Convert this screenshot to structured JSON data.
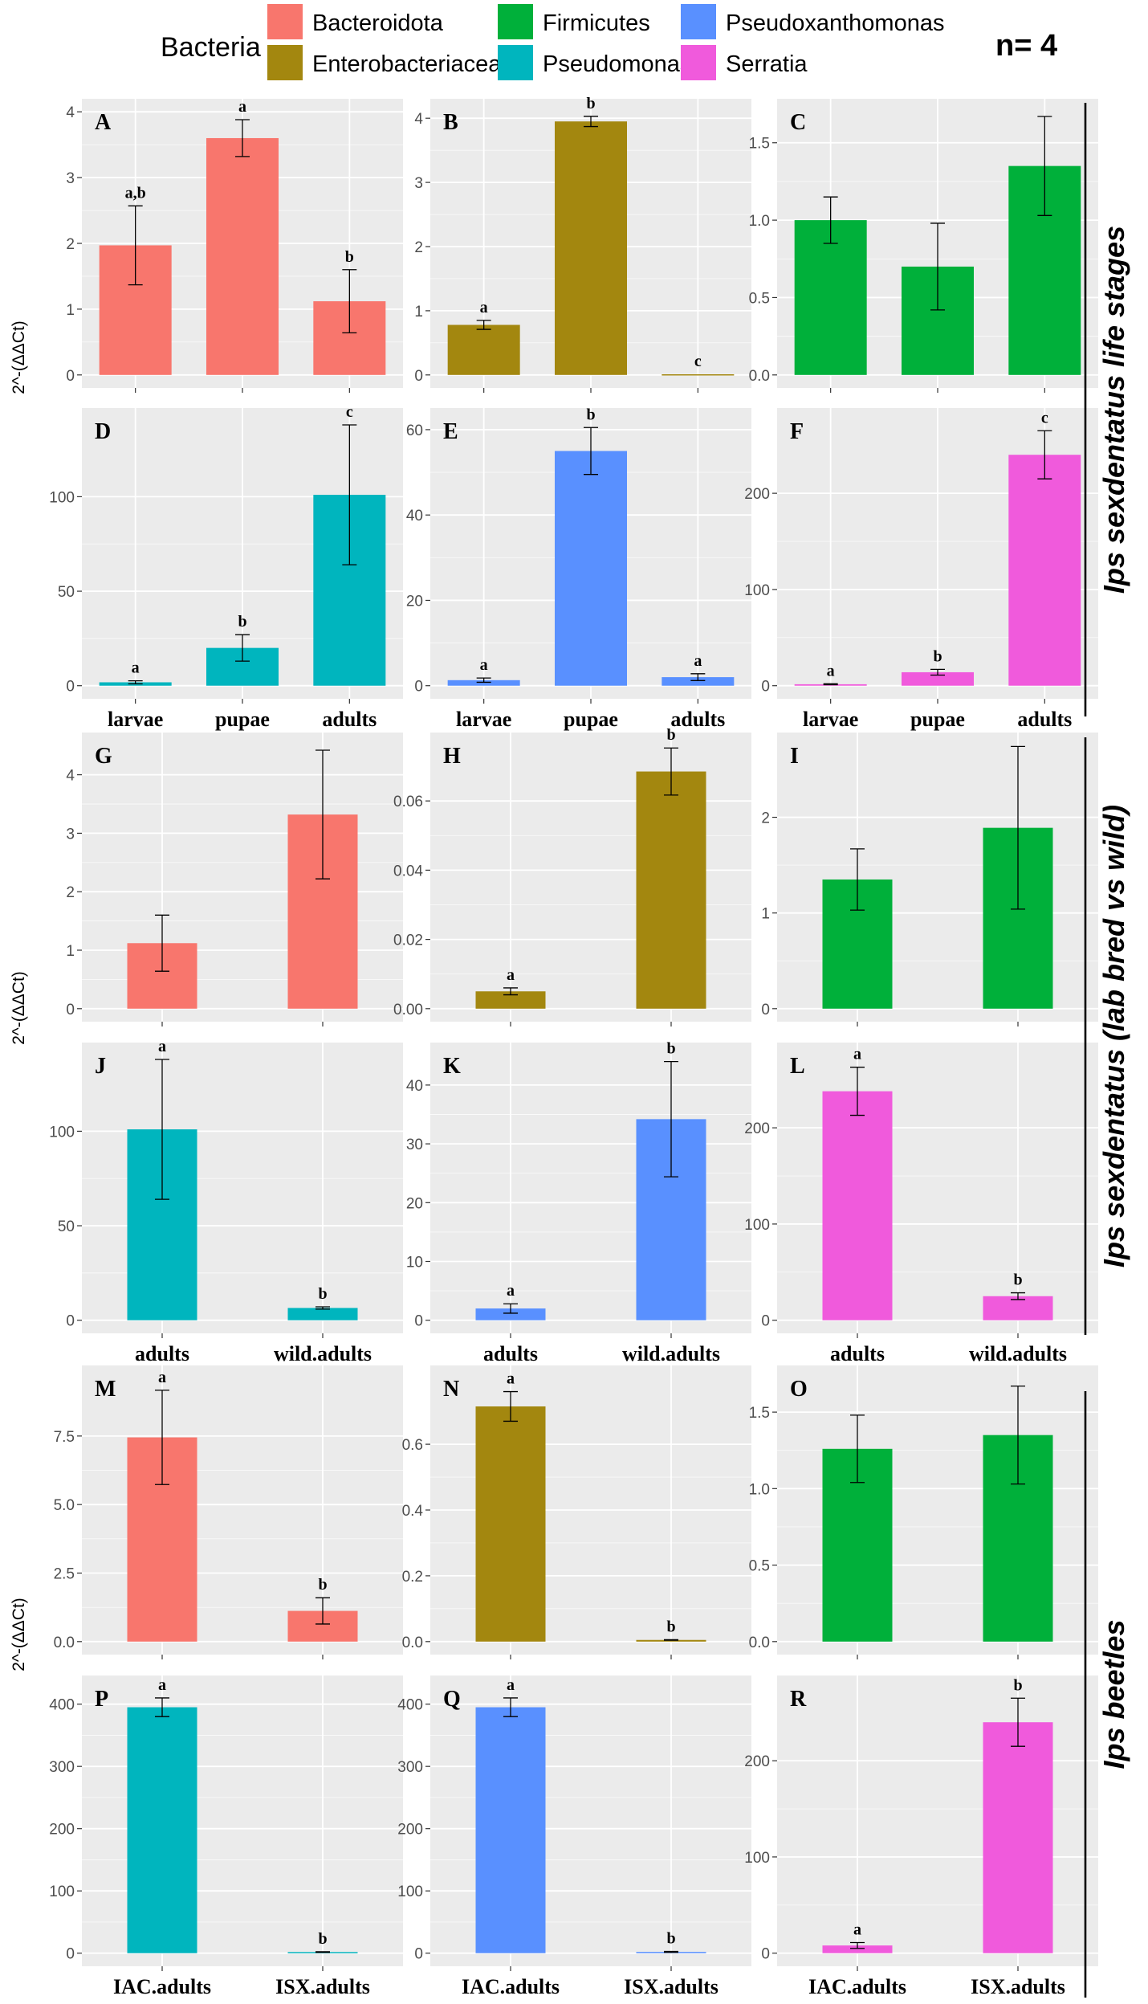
{
  "legend": {
    "title": "Bacteria",
    "items": [
      {
        "label": "Bacteroidota",
        "color": "#F8766D"
      },
      {
        "label": "Enterobacteriaceae",
        "color": "#A3870F"
      },
      {
        "label": "Firmicutes",
        "color": "#00B03A"
      },
      {
        "label": "Pseudomonas",
        "color": "#00B5BE"
      },
      {
        "label": "Pseudoxanthomonas",
        "color": "#5990FF"
      },
      {
        "label": "Serratia",
        "color": "#F05ADC"
      }
    ]
  },
  "n_label": "n= 4",
  "y_axis_label": "2^-(ΔΔCt)",
  "section_labels": [
    {
      "text": "Ips sexdentatus life stages"
    },
    {
      "text": "Ips sexdentatus (lab bred vs wild)"
    },
    {
      "text": "Ips beetles"
    }
  ],
  "chart_data": [
    {
      "panel": "A",
      "type": "bar",
      "group": "Bacteroidota",
      "color": "#F8766D",
      "categories": [
        "larvae",
        "pupae",
        "adults"
      ],
      "values": [
        1.97,
        3.6,
        1.12
      ],
      "err": [
        0.6,
        0.28,
        0.48
      ],
      "sig": [
        "a,b",
        "a",
        "b"
      ],
      "ylim": [
        0,
        4
      ],
      "ticks": [
        {
          "v": 0,
          "t": "0"
        },
        {
          "v": 1,
          "t": "1"
        },
        {
          "v": 2,
          "t": "2"
        },
        {
          "v": 3,
          "t": "3"
        },
        {
          "v": 4,
          "t": "4"
        }
      ],
      "xlabel_show": false
    },
    {
      "panel": "B",
      "type": "bar",
      "group": "Enterobacteriaceae",
      "color": "#A3870F",
      "categories": [
        "larvae",
        "pupae",
        "adults"
      ],
      "values": [
        0.78,
        3.95,
        0.01
      ],
      "err": [
        0.07,
        0.08,
        0
      ],
      "sig": [
        "a",
        "b",
        "c"
      ],
      "ylim": [
        0,
        4.1
      ],
      "ticks": [
        {
          "v": 0,
          "t": "0"
        },
        {
          "v": 1,
          "t": "1"
        },
        {
          "v": 2,
          "t": "2"
        },
        {
          "v": 3,
          "t": "3"
        },
        {
          "v": 4,
          "t": "4"
        }
      ],
      "xlabel_show": false
    },
    {
      "panel": "C",
      "type": "bar",
      "group": "Firmicutes",
      "color": "#00B03A",
      "categories": [
        "larvae",
        "pupae",
        "adults"
      ],
      "values": [
        1.0,
        0.7,
        1.35
      ],
      "err": [
        0.15,
        0.28,
        0.32
      ],
      "sig": [
        "",
        "",
        ""
      ],
      "ylim": [
        0,
        1.7
      ],
      "ticks": [
        {
          "v": 0,
          "t": "0.0"
        },
        {
          "v": 0.5,
          "t": "0.5"
        },
        {
          "v": 1,
          "t": "1.0"
        },
        {
          "v": 1.5,
          "t": "1.5"
        }
      ],
      "xlabel_show": false
    },
    {
      "panel": "D",
      "type": "bar",
      "group": "Pseudomonas",
      "color": "#00B5BE",
      "categories": [
        "larvae",
        "pupae",
        "adults"
      ],
      "values": [
        1.8,
        20,
        101
      ],
      "err": [
        0.8,
        7,
        37
      ],
      "sig": [
        "a",
        "b",
        "c"
      ],
      "ylim": [
        0,
        140
      ],
      "ticks": [
        {
          "v": 0,
          "t": "0"
        },
        {
          "v": 50,
          "t": "50"
        },
        {
          "v": 100,
          "t": "100"
        }
      ],
      "xlabel_show": true
    },
    {
      "panel": "E",
      "type": "bar",
      "group": "Pseudoxanthomonas",
      "color": "#5990FF",
      "categories": [
        "larvae",
        "pupae",
        "adults"
      ],
      "values": [
        1.3,
        55,
        2.0
      ],
      "err": [
        0.5,
        5.5,
        0.8
      ],
      "sig": [
        "a",
        "b",
        "a"
      ],
      "ylim": [
        0,
        62
      ],
      "ticks": [
        {
          "v": 0,
          "t": "0"
        },
        {
          "v": 20,
          "t": "20"
        },
        {
          "v": 40,
          "t": "40"
        },
        {
          "v": 60,
          "t": "60"
        }
      ],
      "xlabel_show": true
    },
    {
      "panel": "F",
      "type": "bar",
      "group": "Serratia",
      "color": "#F05ADC",
      "categories": [
        "larvae",
        "pupae",
        "adults"
      ],
      "values": [
        1.5,
        14,
        240
      ],
      "err": [
        0.5,
        3,
        25
      ],
      "sig": [
        "a",
        "b",
        "c"
      ],
      "ylim": [
        0,
        275
      ],
      "ticks": [
        {
          "v": 0,
          "t": "0"
        },
        {
          "v": 100,
          "t": "100"
        },
        {
          "v": 200,
          "t": "200"
        }
      ],
      "xlabel_show": true
    },
    {
      "panel": "G",
      "type": "bar",
      "group": "Bacteroidota",
      "color": "#F8766D",
      "categories": [
        "adults",
        "wild.adults"
      ],
      "values": [
        1.12,
        3.32
      ],
      "err": [
        0.48,
        1.1
      ],
      "sig": [
        "",
        ""
      ],
      "ylim": [
        0,
        4.5
      ],
      "ticks": [
        {
          "v": 0,
          "t": "0"
        },
        {
          "v": 1,
          "t": "1"
        },
        {
          "v": 2,
          "t": "2"
        },
        {
          "v": 3,
          "t": "3"
        },
        {
          "v": 4,
          "t": "4"
        }
      ],
      "xlabel_show": false
    },
    {
      "panel": "H",
      "type": "bar",
      "group": "Enterobacteriaceae",
      "color": "#A3870F",
      "categories": [
        "adults",
        "wild.adults"
      ],
      "values": [
        0.005,
        0.0685
      ],
      "err": [
        0.001,
        0.0068
      ],
      "sig": [
        "a",
        "b"
      ],
      "ylim": [
        0,
        0.076
      ],
      "ticks": [
        {
          "v": 0,
          "t": "0.00"
        },
        {
          "v": 0.02,
          "t": "0.02"
        },
        {
          "v": 0.04,
          "t": "0.04"
        },
        {
          "v": 0.06,
          "t": "0.06"
        }
      ],
      "xlabel_show": false
    },
    {
      "panel": "I",
      "type": "bar",
      "group": "Firmicutes",
      "color": "#00B03A",
      "categories": [
        "adults",
        "wild.adults"
      ],
      "values": [
        1.35,
        1.89
      ],
      "err": [
        0.32,
        0.85
      ],
      "sig": [
        "",
        ""
      ],
      "ylim": [
        0,
        2.75
      ],
      "ticks": [
        {
          "v": 0,
          "t": "0"
        },
        {
          "v": 1,
          "t": "1"
        },
        {
          "v": 2,
          "t": "2"
        }
      ],
      "xlabel_show": false
    },
    {
      "panel": "J",
      "type": "bar",
      "group": "Pseudomonas",
      "color": "#00B5BE",
      "categories": [
        "adults",
        "wild.adults"
      ],
      "values": [
        101,
        6.5
      ],
      "err": [
        37,
        0.6
      ],
      "sig": [
        "a",
        "b"
      ],
      "ylim": [
        0,
        140
      ],
      "ticks": [
        {
          "v": 0,
          "t": "0"
        },
        {
          "v": 50,
          "t": "50"
        },
        {
          "v": 100,
          "t": "100"
        }
      ],
      "xlabel_show": true
    },
    {
      "panel": "K",
      "type": "bar",
      "group": "Pseudoxanthomonas",
      "color": "#5990FF",
      "categories": [
        "adults",
        "wild.adults"
      ],
      "values": [
        2.0,
        34.2
      ],
      "err": [
        0.8,
        9.8
      ],
      "sig": [
        "a",
        "b"
      ],
      "ylim": [
        0,
        45
      ],
      "ticks": [
        {
          "v": 0,
          "t": "0"
        },
        {
          "v": 10,
          "t": "10"
        },
        {
          "v": 20,
          "t": "20"
        },
        {
          "v": 30,
          "t": "30"
        },
        {
          "v": 40,
          "t": "40"
        }
      ],
      "xlabel_show": true
    },
    {
      "panel": "L",
      "type": "bar",
      "group": "Serratia",
      "color": "#F05ADC",
      "categories": [
        "adults",
        "wild.adults"
      ],
      "values": [
        238,
        25
      ],
      "err": [
        25,
        3.5
      ],
      "sig": [
        "a",
        "b"
      ],
      "ylim": [
        0,
        275
      ],
      "ticks": [
        {
          "v": 0,
          "t": "0"
        },
        {
          "v": 100,
          "t": "100"
        },
        {
          "v": 200,
          "t": "200"
        }
      ],
      "xlabel_show": true
    },
    {
      "panel": "M",
      "type": "bar",
      "group": "Bacteroidota",
      "color": "#F8766D",
      "categories": [
        "IAC.adults",
        "ISX.adults"
      ],
      "values": [
        7.45,
        1.12
      ],
      "err": [
        1.72,
        0.48
      ],
      "sig": [
        "a",
        "b"
      ],
      "ylim": [
        0,
        9.6
      ],
      "ticks": [
        {
          "v": 0,
          "t": "0.0"
        },
        {
          "v": 2.5,
          "t": "2.5"
        },
        {
          "v": 5,
          "t": "5.0"
        },
        {
          "v": 7.5,
          "t": "7.5"
        }
      ],
      "xlabel_show": false
    },
    {
      "panel": "N",
      "type": "bar",
      "group": "Enterobacteriaceae",
      "color": "#A3870F",
      "categories": [
        "IAC.adults",
        "ISX.adults"
      ],
      "values": [
        0.715,
        0.005
      ],
      "err": [
        0.045,
        0.001
      ],
      "sig": [
        "a",
        "b"
      ],
      "ylim": [
        0,
        0.8
      ],
      "ticks": [
        {
          "v": 0,
          "t": "0.0"
        },
        {
          "v": 0.2,
          "t": "0.2"
        },
        {
          "v": 0.4,
          "t": "0.4"
        },
        {
          "v": 0.6,
          "t": "0.6"
        }
      ],
      "xlabel_show": false
    },
    {
      "panel": "O",
      "type": "bar",
      "group": "Firmicutes",
      "color": "#00B03A",
      "categories": [
        "IAC.adults",
        "ISX.adults"
      ],
      "values": [
        1.26,
        1.35
      ],
      "err": [
        0.22,
        0.32
      ],
      "sig": [
        "",
        ""
      ],
      "ylim": [
        0,
        1.72
      ],
      "ticks": [
        {
          "v": 0,
          "t": "0.0"
        },
        {
          "v": 0.5,
          "t": "0.5"
        },
        {
          "v": 1,
          "t": "1.0"
        },
        {
          "v": 1.5,
          "t": "1.5"
        }
      ],
      "xlabel_show": false
    },
    {
      "panel": "P",
      "type": "bar",
      "group": "Pseudomonas",
      "color": "#00B5BE",
      "categories": [
        "IAC.adults",
        "ISX.adults"
      ],
      "values": [
        395,
        1.8
      ],
      "err": [
        15,
        0.6
      ],
      "sig": [
        "a",
        "b"
      ],
      "ylim": [
        0,
        425
      ],
      "ticks": [
        {
          "v": 0,
          "t": "0"
        },
        {
          "v": 100,
          "t": "100"
        },
        {
          "v": 200,
          "t": "200"
        },
        {
          "v": 300,
          "t": "300"
        },
        {
          "v": 400,
          "t": "400"
        }
      ],
      "xlabel_show": true
    },
    {
      "panel": "Q",
      "type": "bar",
      "group": "Pseudoxanthomonas",
      "color": "#5990FF",
      "categories": [
        "IAC.adults",
        "ISX.adults"
      ],
      "values": [
        395,
        2.0
      ],
      "err": [
        15,
        0.8
      ],
      "sig": [
        "a",
        "b"
      ],
      "ylim": [
        0,
        425
      ],
      "ticks": [
        {
          "v": 0,
          "t": "0"
        },
        {
          "v": 100,
          "t": "100"
        },
        {
          "v": 200,
          "t": "200"
        },
        {
          "v": 300,
          "t": "300"
        },
        {
          "v": 400,
          "t": "400"
        }
      ],
      "xlabel_show": true
    },
    {
      "panel": "R",
      "type": "bar",
      "group": "Serratia",
      "color": "#F05ADC",
      "categories": [
        "IAC.adults",
        "ISX.adults"
      ],
      "values": [
        8,
        240
      ],
      "err": [
        3,
        25
      ],
      "sig": [
        "a",
        "b"
      ],
      "ylim": [
        0,
        275
      ],
      "ticks": [
        {
          "v": 0,
          "t": "0"
        },
        {
          "v": 100,
          "t": "100"
        },
        {
          "v": 200,
          "t": "200"
        }
      ],
      "xlabel_show": true
    }
  ]
}
